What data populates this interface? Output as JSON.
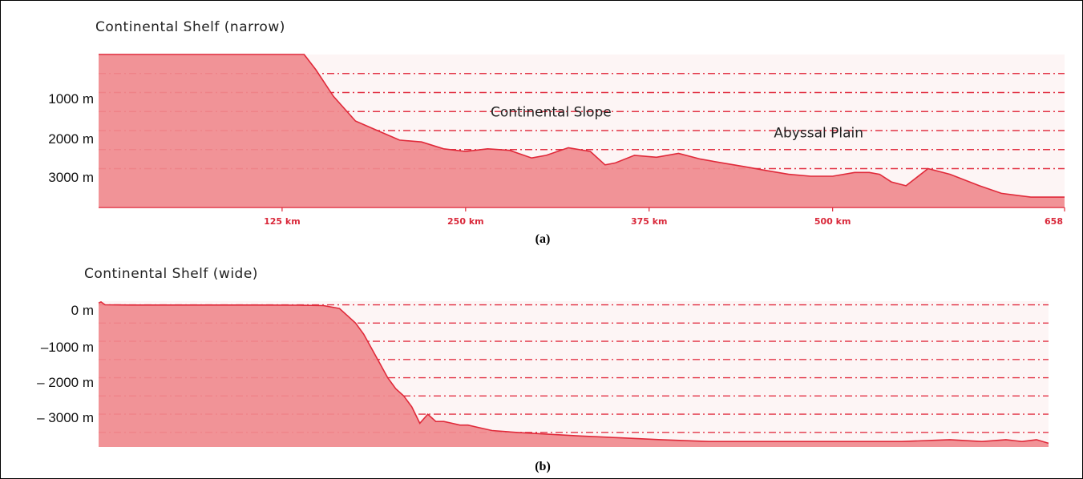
{
  "colors": {
    "fill": "#f08a8e",
    "line": "#e02a3a",
    "grid": "#e23345",
    "panel_bg": "#fdf5f5"
  },
  "chart_data": [
    {
      "type": "area",
      "panel_label": "(a)",
      "title": "Continental Shelf (narrow)",
      "xlabel": "",
      "ylabel": "",
      "x_tick_labels": [
        "125 km",
        "250 km",
        "375 km",
        "500 km",
        "658"
      ],
      "x_tick_values": [
        125,
        250,
        375,
        500,
        658
      ],
      "y_tick_labels": [
        "1000 m",
        "2000 m",
        "3000 m"
      ],
      "y_tick_values": [
        1000,
        2000,
        3000
      ],
      "xlim": [
        0,
        658
      ],
      "ylim_depth_m": [
        0,
        4000
      ],
      "grid": "horizontal dash-dot",
      "annotations": [
        {
          "text": "Continental Slope",
          "x": 267,
          "depth": 1500
        },
        {
          "text": "Abyssal Plain",
          "x": 460,
          "depth": 2050
        }
      ],
      "series": [
        {
          "x": [
            0,
            140,
            148,
            160,
            175,
            190,
            205,
            220,
            235,
            250,
            265,
            280,
            295,
            305,
            320,
            335,
            345,
            352,
            365,
            380,
            395,
            410,
            425,
            440,
            455,
            470,
            485,
            500,
            515,
            525,
            532,
            540,
            550,
            565,
            580,
            600,
            615,
            635,
            658
          ],
          "y": [
            0,
            0,
            400,
            1100,
            1750,
            2000,
            2250,
            2300,
            2480,
            2550,
            2480,
            2520,
            2720,
            2650,
            2450,
            2550,
            2900,
            2850,
            2650,
            2700,
            2600,
            2750,
            2850,
            2950,
            3050,
            3150,
            3200,
            3200,
            3100,
            3100,
            3150,
            3350,
            3450,
            3000,
            3150,
            3450,
            3650,
            3750,
            3750
          ]
        }
      ]
    },
    {
      "type": "area",
      "panel_label": "(b)",
      "title": "Continental Shelf (wide)",
      "xlabel": "",
      "ylabel": "",
      "y_tick_labels": [
        "0 m",
        "–1000 m",
        "– 2000 m",
        "– 3000 m"
      ],
      "y_tick_values": [
        0,
        -1000,
        -2000,
        -3000
      ],
      "ylim_elevation_m": [
        -3900,
        100
      ],
      "grid": "horizontal dash-dot",
      "series": [
        {
          "x": [
            0,
            3,
            8,
            40,
            90,
            150,
            200,
            250,
            280,
            300,
            310,
            320,
            330,
            340,
            350,
            360,
            370,
            380,
            390,
            400,
            410,
            420,
            430,
            440,
            450,
            460,
            470,
            490,
            520,
            560,
            600,
            650,
            700,
            760,
            820,
            880,
            940,
            1000,
            1060,
            1100,
            1130,
            1150,
            1168,
            1183
          ],
          "y": [
            50,
            80,
            0,
            -5,
            -5,
            -5,
            -5,
            -10,
            -20,
            -100,
            -300,
            -500,
            -800,
            -1200,
            -1600,
            -2000,
            -2300,
            -2500,
            -2800,
            -3250,
            -3000,
            -3200,
            -3200,
            -3250,
            -3300,
            -3300,
            -3350,
            -3450,
            -3500,
            -3550,
            -3600,
            -3650,
            -3700,
            -3750,
            -3750,
            -3750,
            -3750,
            -3750,
            -3700,
            -3750,
            -3700,
            -3750,
            -3700,
            -3800
          ]
        }
      ]
    }
  ]
}
